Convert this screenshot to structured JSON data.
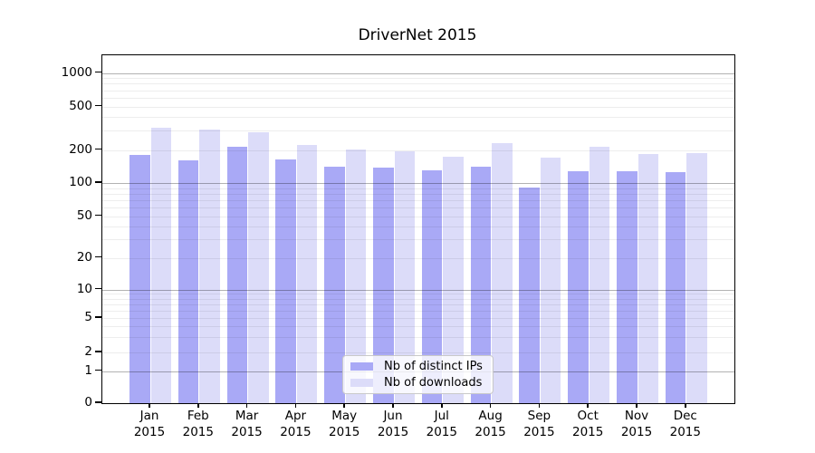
{
  "title": "DriverNet 2015",
  "legend": {
    "items": [
      {
        "label": "Nb of distinct IPs",
        "color": "#a9a9f6"
      },
      {
        "label": "Nb of downloads",
        "color": "#dcdcf9"
      }
    ]
  },
  "axes": {
    "y_tick_labels": [
      "1000",
      "500",
      "200",
      "100",
      "50",
      "20",
      "10",
      "5",
      "2",
      "1",
      "0"
    ],
    "months": [
      "Jan",
      "Feb",
      "Mar",
      "Apr",
      "May",
      "Jun",
      "Jul",
      "Aug",
      "Sep",
      "Oct",
      "Nov",
      "Dec"
    ],
    "year": "2015"
  },
  "chart_data": {
    "type": "bar",
    "title": "DriverNet 2015",
    "categories": [
      "Jan 2015",
      "Feb 2015",
      "Mar 2015",
      "Apr 2015",
      "May 2015",
      "Jun 2015",
      "Jul 2015",
      "Aug 2015",
      "Sep 2015",
      "Oct 2015",
      "Nov 2015",
      "Dec 2015"
    ],
    "series": [
      {
        "name": "Nb of distinct IPs",
        "color": "#a9a9f6",
        "values": [
          180,
          161,
          213,
          164,
          141,
          138,
          131,
          141,
          91,
          127,
          128,
          126
        ]
      },
      {
        "name": "Nb of downloads",
        "color": "#dcdcf9",
        "values": [
          320,
          305,
          290,
          223,
          203,
          196,
          175,
          230,
          170,
          212,
          182,
          186
        ]
      }
    ],
    "yscale": "symlog",
    "yticks": [
      0,
      1,
      2,
      5,
      10,
      20,
      50,
      100,
      200,
      500,
      1000
    ],
    "ylim": [
      0,
      1450
    ],
    "grid": true,
    "legend_position": "lower center"
  }
}
